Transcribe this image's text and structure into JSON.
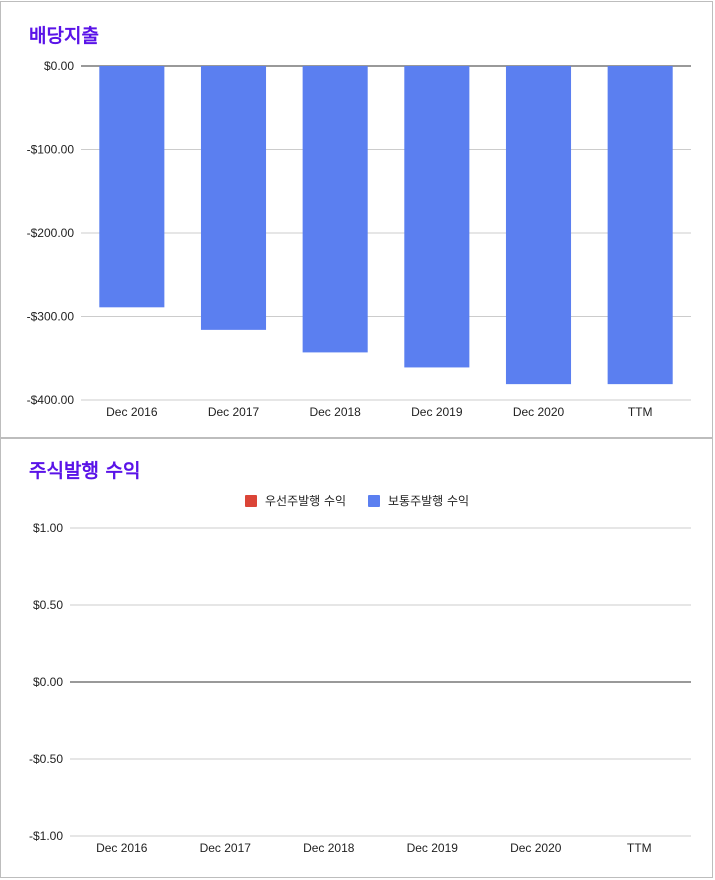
{
  "chart_data": [
    {
      "type": "bar",
      "title": "배당지출",
      "categories": [
        "Dec 2016",
        "Dec 2017",
        "Dec 2018",
        "Dec 2019",
        "Dec 2020",
        "TTM"
      ],
      "series": [
        {
          "values": [
            -289,
            -316,
            -343,
            -361,
            -381,
            -381
          ],
          "color": "#5b7ff0"
        }
      ],
      "y_ticks": [
        "$0.00",
        "-$100.00",
        "-$200.00",
        "-$300.00",
        "-$400.00"
      ],
      "ylim": [
        -400,
        0
      ],
      "grid": true,
      "legend": "none"
    },
    {
      "type": "bar",
      "title": "주식발행 수익",
      "categories": [
        "Dec 2016",
        "Dec 2017",
        "Dec 2018",
        "Dec 2019",
        "Dec 2020",
        "TTM"
      ],
      "series": [
        {
          "name": "우선주발행 수익",
          "values": [
            0,
            0,
            0,
            0,
            0,
            0
          ],
          "color": "#db4437"
        },
        {
          "name": "보통주발행 수익",
          "values": [
            0,
            0,
            0,
            0,
            0,
            0
          ],
          "color": "#5b7ff0"
        }
      ],
      "y_ticks": [
        "$1.00",
        "$0.50",
        "$0.00",
        "-$0.50",
        "-$1.00"
      ],
      "ylim": [
        -1,
        1
      ],
      "grid": true,
      "legend": "top"
    }
  ]
}
